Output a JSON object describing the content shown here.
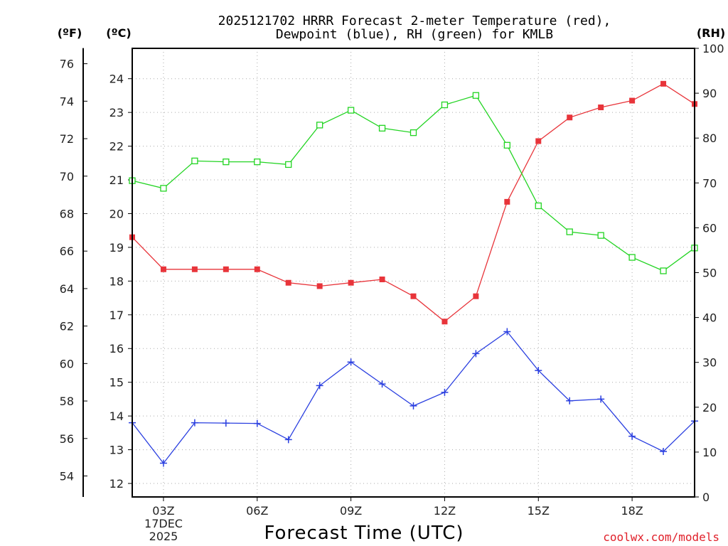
{
  "chart_data": {
    "type": "line",
    "title_line1": "2025121702 HRRR Forecast 2-meter Temperature (red),",
    "title_line2": "Dewpoint (blue), RH (green) for KMLB",
    "xlabel": "Forecast Time (UTC)",
    "credit": "coolwx.com/models",
    "units": {
      "fahrenheit": "(ºF)",
      "celsius": "(ºC)",
      "rh": "(RH)"
    },
    "x_hours": [
      2,
      3,
      4,
      5,
      6,
      7,
      8,
      9,
      10,
      11,
      12,
      13,
      14,
      15,
      16,
      17,
      18,
      19,
      20
    ],
    "x_range": [
      2,
      20
    ],
    "x_ticks": [
      {
        "hour": 3,
        "label": "03Z"
      },
      {
        "hour": 6,
        "label": "06Z"
      },
      {
        "hour": 9,
        "label": "09Z"
      },
      {
        "hour": 12,
        "label": "12Z"
      },
      {
        "hour": 15,
        "label": "15Z"
      },
      {
        "hour": 18,
        "label": "18Z"
      }
    ],
    "date_label_day": "17DEC",
    "date_label_year": "2025",
    "celsius_axis": {
      "ylim": [
        11.6,
        24.9
      ],
      "ticks": [
        12,
        13,
        14,
        15,
        16,
        17,
        18,
        19,
        20,
        21,
        22,
        23,
        24
      ]
    },
    "fahrenheit_axis": {
      "ticks": [
        54,
        56,
        58,
        60,
        62,
        64,
        66,
        68,
        70,
        72,
        74,
        76
      ]
    },
    "rh_axis": {
      "ylim": [
        0,
        100
      ],
      "ticks": [
        0,
        10,
        20,
        30,
        40,
        50,
        60,
        70,
        80,
        90,
        100
      ]
    },
    "series": [
      {
        "name": "2-meter Temperature",
        "units": "C",
        "color": "#e8343a",
        "marker": "filled-square",
        "values": [
          19.3,
          18.35,
          18.35,
          18.35,
          18.35,
          17.95,
          17.85,
          17.95,
          18.05,
          17.55,
          16.8,
          17.55,
          20.35,
          22.15,
          22.85,
          23.15,
          23.35,
          23.85,
          23.25
        ]
      },
      {
        "name": "Dewpoint",
        "units": "C",
        "color": "#2a3fe0",
        "marker": "plus",
        "values": [
          13.8,
          12.6,
          13.8,
          13.79,
          13.78,
          13.3,
          14.9,
          15.6,
          14.95,
          14.3,
          14.7,
          15.85,
          16.5,
          15.35,
          14.45,
          14.5,
          13.4,
          12.95,
          13.85
        ]
      },
      {
        "name": "RH",
        "units": "%",
        "color": "#22d422",
        "marker": "open-square",
        "values": [
          70.5,
          68.8,
          74.9,
          74.7,
          74.7,
          74.1,
          82.9,
          86.2,
          82.2,
          81.2,
          87.4,
          89.5,
          78.4,
          64.9,
          59.1,
          58.3,
          53.4,
          50.4,
          55.5
        ]
      }
    ]
  }
}
